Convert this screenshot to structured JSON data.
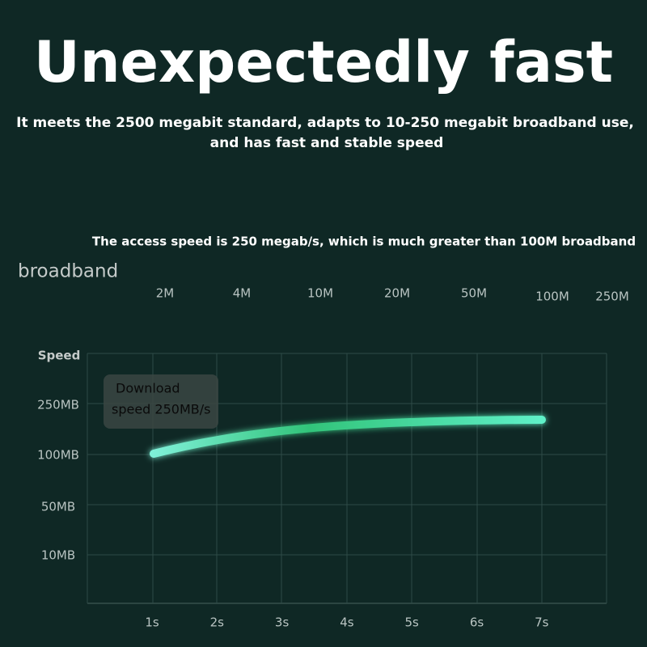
{
  "header": {
    "title": "Unexpectedly fast",
    "subtitle_lines": [
      "It meets the 2500 megabit standard, adapts to 10-250 megabit broadband use,",
      "and has fast and stable speed"
    ]
  },
  "speed_bar": {
    "caption": "The access speed is 250 megab/s, which is much greater than 100M broadband",
    "label": "broadband",
    "ticks": [
      "2M",
      "4M",
      "10M",
      "20M",
      "50M",
      "100M",
      "250M"
    ]
  },
  "speed_chart": {
    "y_title": "Speed",
    "y_labels": [
      "250MB",
      "100MB",
      "50MB",
      "10MB"
    ],
    "x_labels": [
      "1s",
      "2s",
      "3s",
      "4s",
      "5s",
      "6s",
      "7s"
    ],
    "annotation_lines": [
      "Download",
      "speed 250MB/s"
    ]
  }
}
